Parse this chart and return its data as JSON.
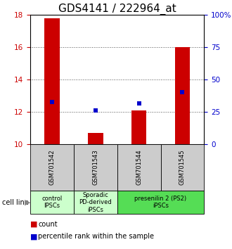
{
  "title": "GDS4141 / 222964_at",
  "samples": [
    "GSM701542",
    "GSM701543",
    "GSM701544",
    "GSM701545"
  ],
  "red_values": [
    17.8,
    10.7,
    12.1,
    16.0
  ],
  "blue_values": [
    12.62,
    12.1,
    12.52,
    13.25
  ],
  "bar_base": 10.0,
  "ylim_left": [
    10,
    18
  ],
  "ylim_right": [
    0,
    100
  ],
  "yticks_left": [
    10,
    12,
    14,
    16,
    18
  ],
  "yticks_right": [
    0,
    25,
    50,
    75,
    100
  ],
  "yticklabels_right": [
    "0",
    "25",
    "50",
    "75",
    "100%"
  ],
  "group_bg_color": "#cccccc",
  "group_defs": [
    {
      "label": "control\nIPSCs",
      "color": "#ccffcc",
      "start": 0,
      "end": 1
    },
    {
      "label": "Sporadic\nPD-derived\niPSCs",
      "color": "#ccffcc",
      "start": 1,
      "end": 2
    },
    {
      "label": "presenilin 2 (PS2)\niPSCs",
      "color": "#55dd55",
      "start": 2,
      "end": 4
    }
  ],
  "red_color": "#cc0000",
  "blue_color": "#0000cc",
  "bar_width": 0.35,
  "blue_marker_size": 5,
  "dotted_line_color": "#555555",
  "axis_color_left": "#cc0000",
  "axis_color_right": "#0000cc",
  "title_fontsize": 11,
  "tick_fontsize": 7.5,
  "sample_fontsize": 6,
  "group_fontsize": 6
}
